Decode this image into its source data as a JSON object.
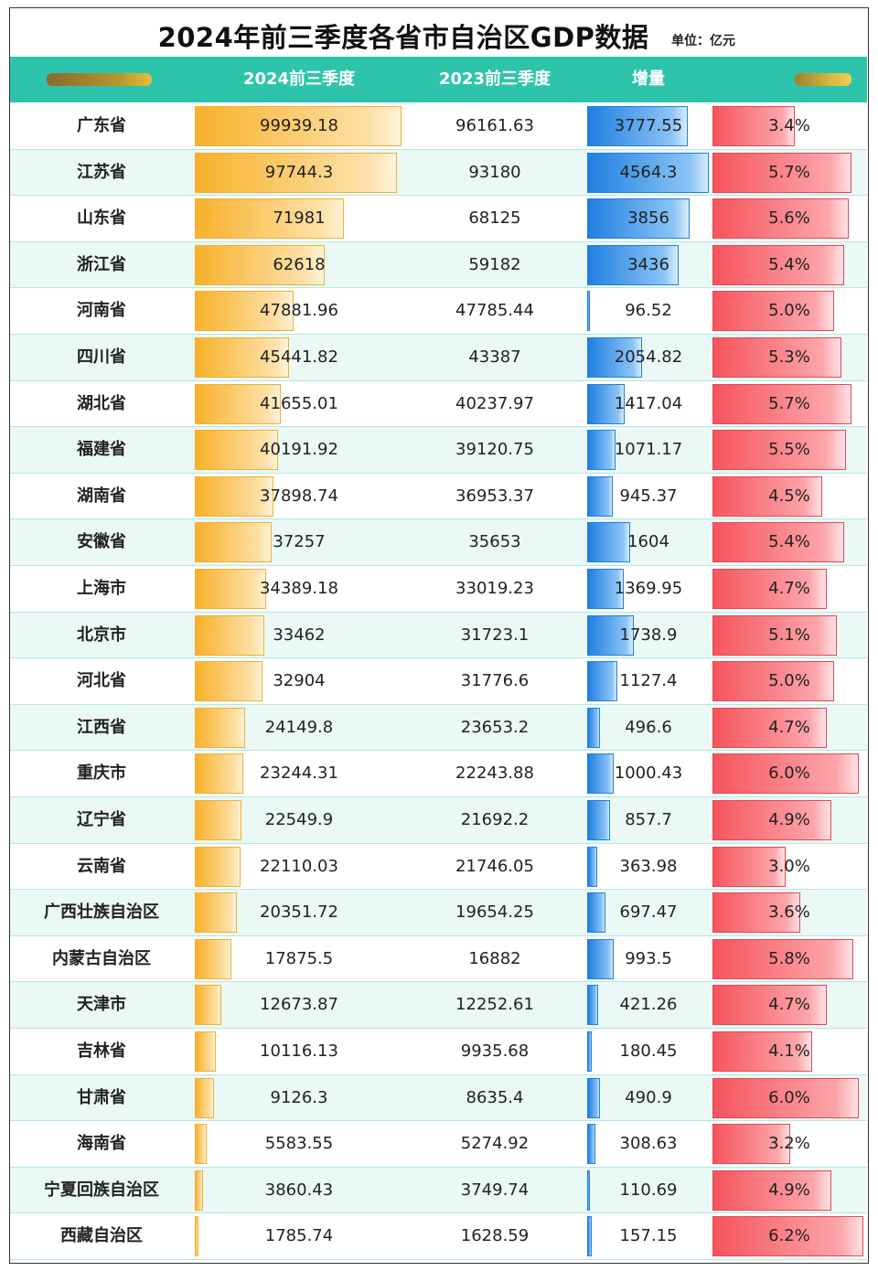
{
  "title": "2024年前三季度各省市自治区GDP数据",
  "unit": "单位：亿元",
  "colors": {
    "header": "#2ec4ac",
    "gold": "#f8b12a",
    "blue": "#1f7fe0",
    "red": "#f6545c"
  },
  "chart_data": {
    "type": "table",
    "title": "2024年前三季度各省市自治区GDP数据",
    "unit": "单位：亿元",
    "columns": [
      "2024前三季度",
      "2023前三季度",
      "增量"
    ],
    "growth_column_label": "",
    "rows": [
      {
        "name": "广东省",
        "v2024": "99939.18",
        "v2023": "96161.63",
        "inc": "3777.55",
        "pct": "3.4%"
      },
      {
        "name": "江苏省",
        "v2024": "97744.3",
        "v2023": "93180",
        "inc": "4564.3",
        "pct": "5.7%"
      },
      {
        "name": "山东省",
        "v2024": "71981",
        "v2023": "68125",
        "inc": "3856",
        "pct": "5.6%"
      },
      {
        "name": "浙江省",
        "v2024": "62618",
        "v2023": "59182",
        "inc": "3436",
        "pct": "5.4%"
      },
      {
        "name": "河南省",
        "v2024": "47881.96",
        "v2023": "47785.44",
        "inc": "96.52",
        "pct": "5.0%"
      },
      {
        "name": "四川省",
        "v2024": "45441.82",
        "v2023": "43387",
        "inc": "2054.82",
        "pct": "5.3%"
      },
      {
        "name": "湖北省",
        "v2024": "41655.01",
        "v2023": "40237.97",
        "inc": "1417.04",
        "pct": "5.7%"
      },
      {
        "name": "福建省",
        "v2024": "40191.92",
        "v2023": "39120.75",
        "inc": "1071.17",
        "pct": "5.5%"
      },
      {
        "name": "湖南省",
        "v2024": "37898.74",
        "v2023": "36953.37",
        "inc": "945.37",
        "pct": "4.5%"
      },
      {
        "name": "安徽省",
        "v2024": "37257",
        "v2023": "35653",
        "inc": "1604",
        "pct": "5.4%"
      },
      {
        "name": "上海市",
        "v2024": "34389.18",
        "v2023": "33019.23",
        "inc": "1369.95",
        "pct": "4.7%"
      },
      {
        "name": "北京市",
        "v2024": "33462",
        "v2023": "31723.1",
        "inc": "1738.9",
        "pct": "5.1%"
      },
      {
        "name": "河北省",
        "v2024": "32904",
        "v2023": "31776.6",
        "inc": "1127.4",
        "pct": "5.0%"
      },
      {
        "name": "江西省",
        "v2024": "24149.8",
        "v2023": "23653.2",
        "inc": "496.6",
        "pct": "4.7%"
      },
      {
        "name": "重庆市",
        "v2024": "23244.31",
        "v2023": "22243.88",
        "inc": "1000.43",
        "pct": "6.0%"
      },
      {
        "name": "辽宁省",
        "v2024": "22549.9",
        "v2023": "21692.2",
        "inc": "857.7",
        "pct": "4.9%"
      },
      {
        "name": "云南省",
        "v2024": "22110.03",
        "v2023": "21746.05",
        "inc": "363.98",
        "pct": "3.0%"
      },
      {
        "name": "广西壮族自治区",
        "v2024": "20351.72",
        "v2023": "19654.25",
        "inc": "697.47",
        "pct": "3.6%"
      },
      {
        "name": "内蒙古自治区",
        "v2024": "17875.5",
        "v2023": "16882",
        "inc": "993.5",
        "pct": "5.8%"
      },
      {
        "name": "天津市",
        "v2024": "12673.87",
        "v2023": "12252.61",
        "inc": "421.26",
        "pct": "4.7%"
      },
      {
        "name": "吉林省",
        "v2024": "10116.13",
        "v2023": "9935.68",
        "inc": "180.45",
        "pct": "4.1%"
      },
      {
        "name": "甘肃省",
        "v2024": "9126.3",
        "v2023": "8635.4",
        "inc": "490.9",
        "pct": "6.0%"
      },
      {
        "name": "海南省",
        "v2024": "5583.55",
        "v2023": "5274.92",
        "inc": "308.63",
        "pct": "3.2%"
      },
      {
        "name": "宁夏回族自治区",
        "v2024": "3860.43",
        "v2023": "3749.74",
        "inc": "110.69",
        "pct": "4.9%"
      },
      {
        "name": "西藏自治区",
        "v2024": "1785.74",
        "v2023": "1628.59",
        "inc": "157.15",
        "pct": "6.2%"
      }
    ]
  }
}
